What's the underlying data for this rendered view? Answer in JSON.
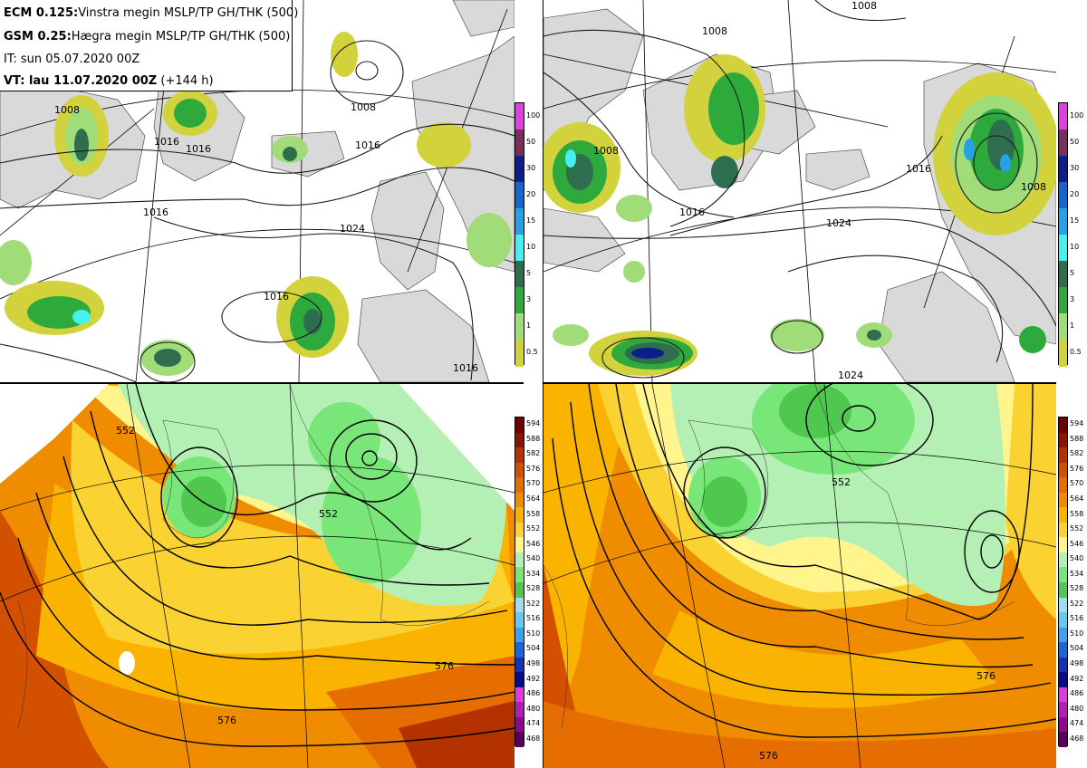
{
  "header": {
    "line1_bold": "ECM 0.125:",
    "line1_rest": "Vinstra megin MSLP/TP GH/THK (500)",
    "line2_bold": "GSM 0.25:",
    "line2_rest": "Hægra megin MSLP/TP GH/THK (500)",
    "line3": "IT: sun 05.07.2020 00Z",
    "line4_bold": "VT: lau 11.07.2020 00Z",
    "line4_rest": " (+144 h)"
  },
  "precip_colorbar": {
    "labels": [
      "100",
      "50",
      "30",
      "20",
      "15",
      "10",
      "5",
      "3",
      "1",
      "0.5"
    ],
    "colors": [
      "#e040e0",
      "#7a2e5a",
      "#0a1e8c",
      "#1464d2",
      "#28a0e6",
      "#46f0f0",
      "#2e6e4e",
      "#2eaa3c",
      "#a0dc78",
      "#d2d23c"
    ]
  },
  "thickness_colorbar": {
    "labels": [
      "594",
      "588",
      "582",
      "576",
      "570",
      "564",
      "558",
      "552",
      "546",
      "540",
      "534",
      "528",
      "522",
      "516",
      "510",
      "504",
      "498",
      "492",
      "486",
      "480",
      "474",
      "468"
    ],
    "colors": [
      "#6e0000",
      "#8c1400",
      "#b43200",
      "#d25000",
      "#e66e00",
      "#f08c00",
      "#fab400",
      "#fad232",
      "#fff58c",
      "#b4f0b4",
      "#78e678",
      "#50c850",
      "#a0dcf0",
      "#64c8f0",
      "#3ca0f0",
      "#1e64dc",
      "#1432b4",
      "#0a0a8c",
      "#dc3cdc",
      "#b41eb4",
      "#8c0a8c",
      "#5a005a"
    ]
  },
  "contour_labels": {
    "tl": [
      "1008",
      "1016",
      "1016",
      "1016",
      "1024",
      "1016",
      "1016",
      "1016",
      "1008"
    ],
    "tr": [
      "1008",
      "1008",
      "1016",
      "1016",
      "1024",
      "1024",
      "1008",
      "1008"
    ],
    "bl": [
      "552",
      "576",
      "576",
      "552"
    ],
    "br": [
      "552",
      "576",
      "576"
    ]
  },
  "colors": {
    "land": "#d9d9d9",
    "ocean": "#ffffff",
    "contour": "#1a1a1a"
  }
}
